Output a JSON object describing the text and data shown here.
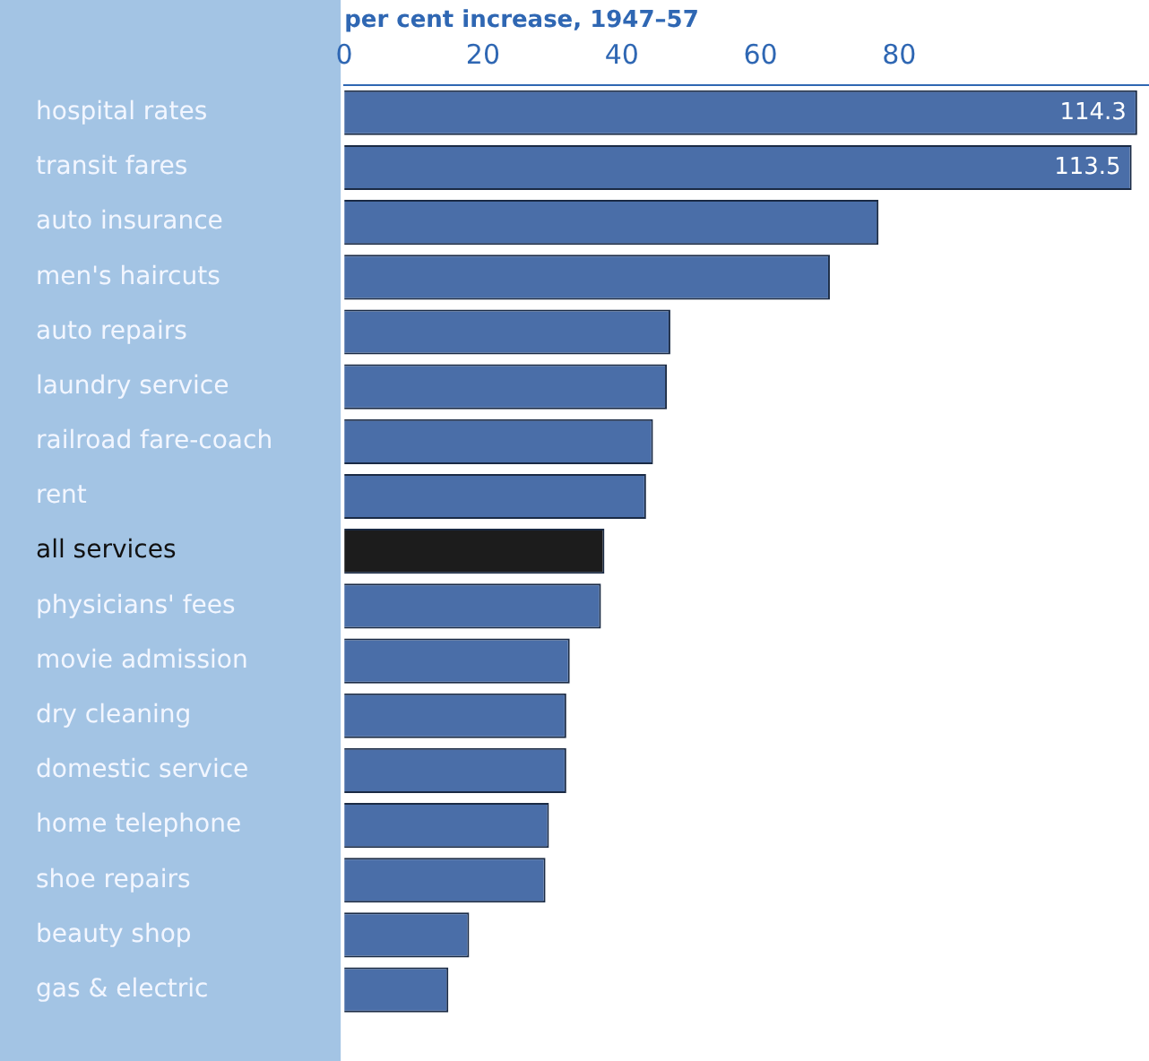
{
  "chart_data": {
    "type": "bar",
    "orientation": "horizontal",
    "xlabel": "per cent increase, 1947–57",
    "categories": [
      "hospital rates",
      "transit fares",
      "auto insurance",
      "men's haircuts",
      "auto repairs",
      "laundry service",
      "railroad fare-coach",
      "rent",
      "all services",
      "physicians' fees",
      "movie admission",
      "dry cleaning",
      "domestic service",
      "home telephone",
      "shoe repairs",
      "beauty shop",
      "gas & electric"
    ],
    "values": [
      114.3,
      113.5,
      77,
      70,
      47,
      46.5,
      44.5,
      43.5,
      37.5,
      37,
      32.5,
      32,
      32,
      29.5,
      29,
      18,
      15
    ],
    "colors": [
      "#4a6ea8",
      "#4a6ea8",
      "#4a6ea8",
      "#4a6ea8",
      "#4a6ea8",
      "#4a6ea8",
      "#4a6ea8",
      "#4a6ea8",
      "#1c1c1c",
      "#4a6ea8",
      "#4a6ea8",
      "#4a6ea8",
      "#4a6ea8",
      "#4a6ea8",
      "#4a6ea8",
      "#4a6ea8",
      "#4a6ea8"
    ],
    "value_labels": [
      "114.3",
      "113.5",
      null,
      null,
      null,
      null,
      null,
      null,
      null,
      null,
      null,
      null,
      null,
      null,
      null,
      null,
      null
    ],
    "xlim": [
      0,
      116
    ],
    "xticks": [
      0,
      20,
      40,
      60,
      80
    ],
    "grid": false,
    "legend": false
  }
}
